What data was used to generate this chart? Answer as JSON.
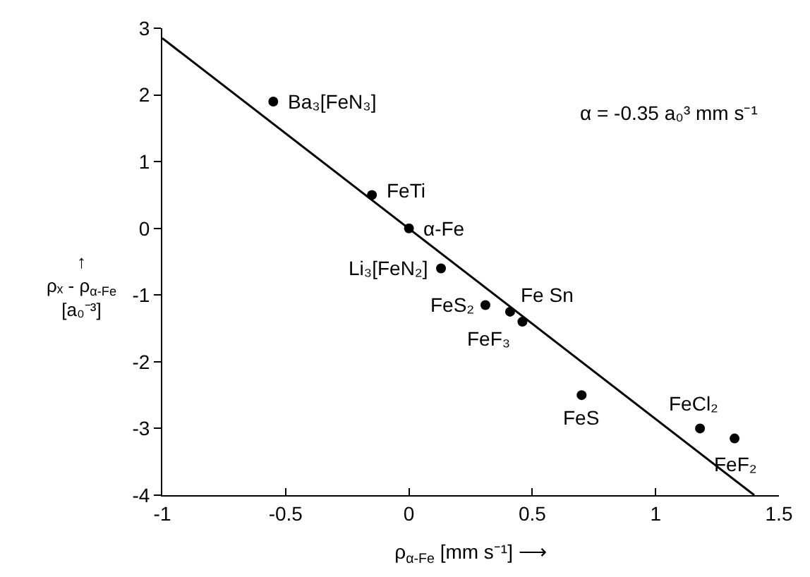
{
  "chart_data": {
    "type": "scatter",
    "xlabel": "ρ$_{α-Fe}$ [mm s⁻¹] ⟶",
    "ylabel": "↑\nρₓ - ρ$_{α-Fe}$\n[a₀⁻³]",
    "x": [
      -0.55,
      -0.15,
      0,
      0.13,
      0.31,
      0.41,
      0.46,
      0.7,
      1.18,
      1.32
    ],
    "series": [
      {
        "color": "#000000",
        "values": [
          1.9,
          0.5,
          0,
          -0.6,
          -1.15,
          -1.25,
          -1.4,
          -2.5,
          -3.0,
          -3.15
        ],
        "marker": "circle"
      },
      {
        "type": "line",
        "color": "#000000",
        "x": [
          -1,
          1.4
        ],
        "values": [
          2.85,
          -4
        ],
        "marker": "none",
        "line_style": "solid"
      }
    ],
    "annotations": [
      {
        "text": "Ba₃[FeN₃]",
        "x": -0.55,
        "y": 1.9
      },
      {
        "text": "FeTi",
        "x": -0.15,
        "y": 0.5
      },
      {
        "text": "α-Fe",
        "x": 0,
        "y": 0
      },
      {
        "text": "Li₃[FeN₂]",
        "x": 0.13,
        "y": -0.6
      },
      {
        "text": "FeS₂",
        "x": 0.31,
        "y": -1.15
      },
      {
        "text": "Fe Sn",
        "x": 0.41,
        "y": -1.25
      },
      {
        "text": "FeF₃",
        "x": 0.46,
        "y": -1.4
      },
      {
        "text": "FeS",
        "x": 0.7,
        "y": -2.5
      },
      {
        "text": "FeCl₂",
        "x": 1.18,
        "y": -3.0
      },
      {
        "text": "FeF₂",
        "x": 1.32,
        "y": -3.15
      },
      "α = -0.35 a₀³ mm s⁻¹"
    ],
    "xlim": [
      -1,
      1.5
    ],
    "xticks": [
      -1,
      -0.5,
      0,
      0.5,
      1,
      1.5
    ],
    "ylim": [
      -4,
      3
    ],
    "yticks": [
      -4,
      -3,
      -2,
      -1,
      0,
      1,
      2,
      3
    ]
  }
}
